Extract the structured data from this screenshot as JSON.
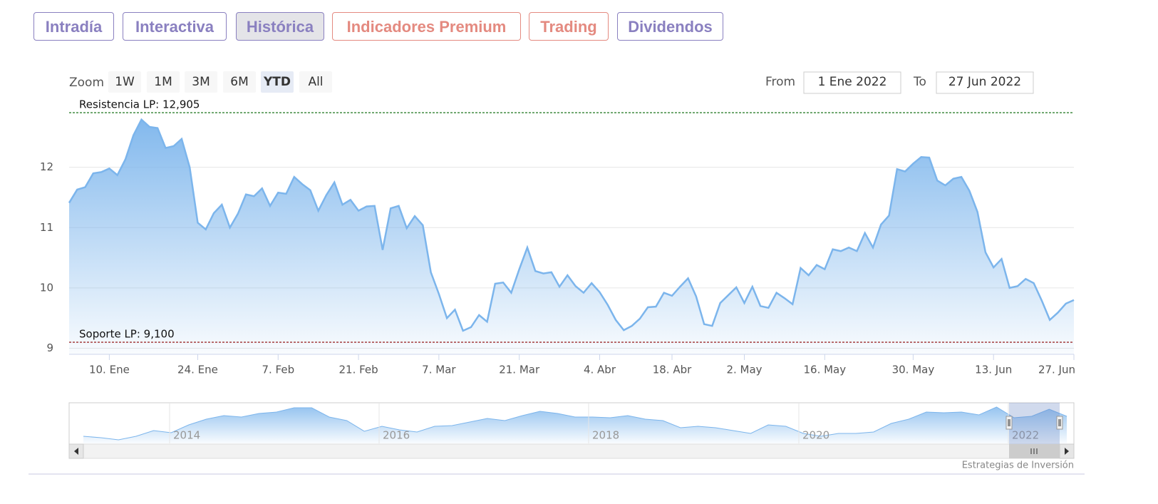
{
  "tabs": [
    "Intradía",
    "Interactiva",
    "Histórica",
    "Indicadores Premium",
    "Trading",
    "Dividendos"
  ],
  "zoom": {
    "label": "Zoom",
    "buttons": [
      "1W",
      "1M",
      "3M",
      "6M",
      "YTD",
      "All"
    ]
  },
  "range": {
    "from_label": "From",
    "from": "1 Ene 2022",
    "to_label": "To",
    "to": "27 Jun 2022"
  },
  "chart_data": {
    "type": "area",
    "color": "#7cb5ec",
    "categories": [
      null,
      null,
      null,
      null,
      null,
      "10. Ene",
      null,
      null,
      null,
      null,
      null,
      null,
      null,
      null,
      null,
      null,
      "24. Ene",
      null,
      null,
      null,
      null,
      null,
      null,
      null,
      null,
      null,
      "7. Feb",
      null,
      null,
      null,
      null,
      null,
      null,
      null,
      null,
      null,
      "21. Feb",
      null,
      null,
      null,
      null,
      null,
      null,
      null,
      null,
      null,
      "7. Mar",
      null,
      null,
      null,
      null,
      null,
      null,
      null,
      null,
      null,
      "21. Mar",
      null,
      null,
      null,
      null,
      null,
      null,
      null,
      null,
      null,
      "4. Abr",
      null,
      null,
      null,
      null,
      null,
      null,
      null,
      null,
      "18. Abr",
      null,
      null,
      null,
      null,
      null,
      null,
      null,
      null,
      "2. May",
      null,
      null,
      null,
      null,
      null,
      null,
      null,
      null,
      null,
      "16. May",
      null,
      null,
      null,
      null,
      null,
      null,
      null,
      null,
      null,
      null,
      "30. May",
      null,
      null,
      null,
      null,
      null,
      null,
      null,
      null,
      null,
      "13. Jun",
      null,
      null,
      null,
      null,
      null,
      null,
      null,
      null,
      null,
      "27. Jun"
    ],
    "values": [
      11.41,
      11.63,
      11.67,
      11.9,
      11.92,
      11.98,
      11.87,
      12.13,
      12.53,
      12.79,
      12.67,
      12.65,
      12.32,
      12.35,
      12.47,
      12.0,
      11.08,
      10.97,
      11.24,
      11.38,
      11.0,
      11.23,
      11.55,
      11.52,
      11.65,
      11.36,
      11.58,
      11.56,
      11.84,
      11.72,
      11.62,
      11.28,
      11.54,
      11.75,
      11.38,
      11.46,
      11.28,
      11.35,
      11.36,
      10.63,
      11.32,
      11.36,
      10.99,
      11.19,
      11.04,
      10.26,
      9.9,
      9.5,
      9.64,
      9.29,
      9.35,
      9.55,
      9.44,
      10.07,
      10.09,
      9.92,
      10.31,
      10.67,
      10.28,
      10.24,
      10.26,
      10.02,
      10.21,
      10.03,
      9.92,
      10.08,
      9.93,
      9.72,
      9.47,
      9.3,
      9.37,
      9.49,
      9.68,
      9.69,
      9.92,
      9.87,
      10.02,
      10.16,
      9.86,
      9.4,
      9.37,
      9.75,
      9.88,
      10.01,
      9.75,
      10.02,
      9.7,
      9.67,
      9.92,
      9.83,
      9.73,
      10.33,
      10.21,
      10.38,
      10.31,
      10.64,
      10.61,
      10.67,
      10.61,
      10.91,
      10.67,
      11.05,
      11.2,
      11.97,
      11.93,
      12.06,
      12.17,
      12.16,
      11.78,
      11.7,
      11.81,
      11.84,
      11.61,
      11.26,
      10.59,
      10.34,
      10.48,
      10.0,
      10.03,
      10.15,
      10.08,
      9.79,
      9.47,
      9.59,
      9.74,
      9.8
    ],
    "ylim": [
      8.9,
      13.0
    ],
    "yticks": [
      9,
      10,
      11,
      12
    ],
    "grid": true,
    "plot_lines": [
      {
        "value": 12.905,
        "label": "Resistencia LP: 12,905",
        "color": "#006400"
      },
      {
        "value": 9.1,
        "label": "Soporte LP: 9,100",
        "color": "#8b0000"
      }
    ]
  },
  "navigator": {
    "labels": [
      "2014",
      "2016",
      "2018",
      "2020",
      "2022"
    ],
    "values": [
      8.0,
      7.8,
      7.5,
      8.0,
      8.8,
      8.5,
      9.6,
      10.4,
      10.9,
      10.7,
      11.2,
      11.4,
      12.0,
      12.0,
      10.7,
      10.2,
      8.7,
      9.4,
      8.9,
      8.6,
      9.4,
      9.5,
      10.0,
      10.5,
      10.2,
      10.9,
      11.5,
      11.2,
      10.7,
      10.7,
      10.6,
      10.9,
      10.4,
      10.2,
      9.2,
      9.4,
      9.2,
      8.8,
      8.4,
      9.6,
      9.4,
      8.4,
      8.0,
      8.4,
      8.4,
      8.6,
      9.8,
      10.4,
      11.4,
      11.3,
      11.4,
      11.0,
      12.1,
      10.6,
      10.8,
      11.8,
      10.8
    ]
  },
  "credit": "Estrategias de Inversión"
}
